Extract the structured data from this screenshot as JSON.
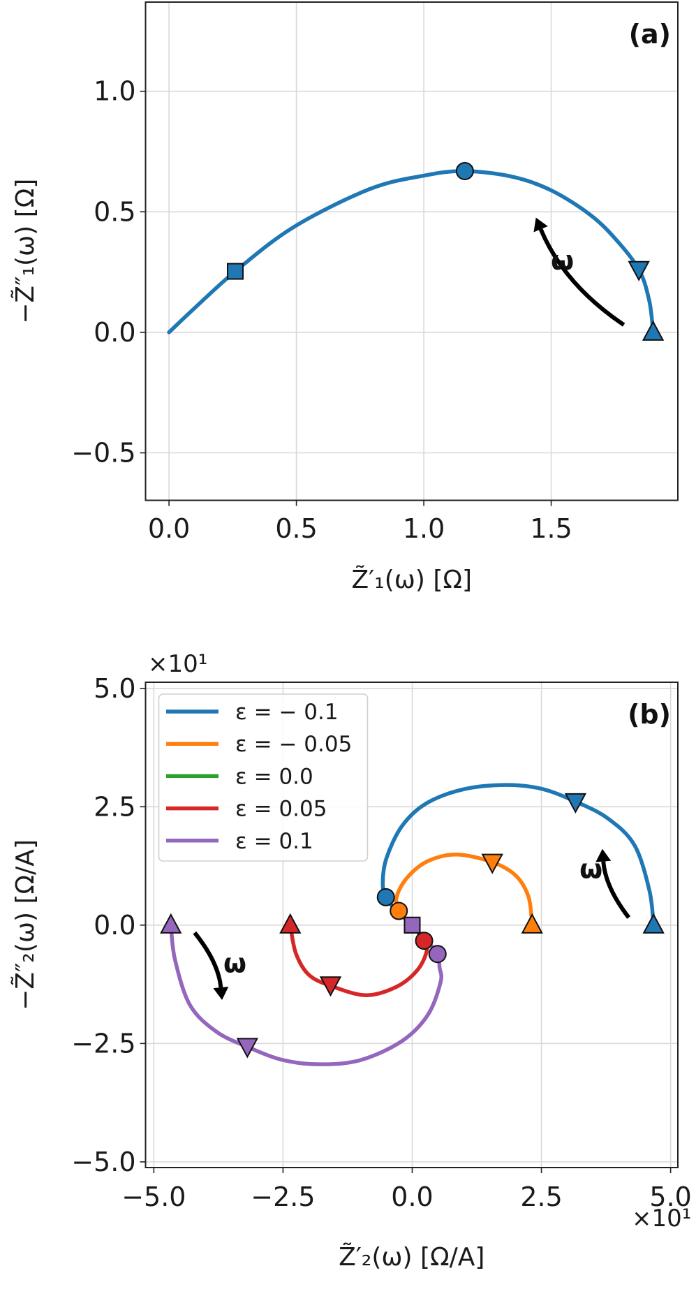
{
  "chart_data": [
    {
      "id": "a",
      "type": "line",
      "panel_label": "(a)",
      "xlabel": "Z̃′₁(ω) [Ω]",
      "ylabel": "−Z̃″₁(ω) [Ω]",
      "xlim": [
        -0.092,
        1.997
      ],
      "ylim": [
        -0.697,
        1.37
      ],
      "xticks": [
        0.0,
        0.5,
        1.0,
        1.5
      ],
      "xtick_labels": [
        "0.0",
        "0.5",
        "1.0",
        "1.5"
      ],
      "yticks": [
        -0.5,
        0.0,
        0.5,
        1.0
      ],
      "ytick_labels": [
        "−0.5",
        "0.0",
        "0.5",
        "1.0"
      ],
      "grid": true,
      "offset_text_x": "",
      "offset_text_y": "",
      "series": [
        {
          "name": "Z1",
          "color": "#1f77b4",
          "points": [
            [
              0,
              0
            ],
            [
              0.1,
              0.1
            ],
            [
              0.26,
              0.253
            ],
            [
              0.49,
              0.437
            ],
            [
              0.787,
              0.594
            ],
            [
              1.0,
              0.65
            ],
            [
              1.161,
              0.669
            ],
            [
              1.35,
              0.645
            ],
            [
              1.5,
              0.589
            ],
            [
              1.65,
              0.49
            ],
            [
              1.75,
              0.39
            ],
            [
              1.844,
              0.261
            ],
            [
              1.885,
              0.13
            ],
            [
              1.9,
              0
            ]
          ],
          "markers": [
            {
              "shape": "triangle-up",
              "x": 1.9,
              "y": 0.0
            },
            {
              "shape": "triangle-down",
              "x": 1.844,
              "y": 0.261
            },
            {
              "shape": "circle",
              "x": 1.161,
              "y": 0.669
            },
            {
              "shape": "square",
              "x": 0.26,
              "y": 0.253
            }
          ]
        }
      ],
      "annotations": [
        {
          "type": "arrow",
          "from": [
            1.785,
            0.031
          ],
          "to": [
            1.44,
            0.476
          ],
          "bend": -1
        }
      ],
      "omega_labels": [
        {
          "text": "ω",
          "x": 1.544,
          "y": 0.295
        }
      ]
    },
    {
      "id": "b",
      "type": "line",
      "panel_label": "(b)",
      "xlabel": "Z̃′₂(ω) [Ω/A]",
      "ylabel": "−Z̃″₂(ω) [Ω/A]",
      "xlim": [
        -5.16,
        5.14
      ],
      "ylim": [
        -5.12,
        5.13
      ],
      "xticks": [
        -5.0,
        -2.5,
        0.0,
        2.5,
        5.0
      ],
      "xtick_labels": [
        "−5.0",
        "−2.5",
        "0.0",
        "2.5",
        "5.0"
      ],
      "yticks": [
        -5.0,
        -2.5,
        0.0,
        2.5,
        5.0
      ],
      "ytick_labels": [
        "−5.0",
        "−2.5",
        "0.0",
        "2.5",
        "5.0"
      ],
      "grid": true,
      "offset_text_x": "×10¹",
      "offset_text_y": "×10¹",
      "legend_placement": "top-left",
      "series": [
        {
          "name": "ε = − 0.1",
          "color": "#1f77b4",
          "points": [
            [
              4.67,
              0
            ],
            [
              4.59,
              0.73
            ],
            [
              4.3,
              1.69
            ],
            [
              3.79,
              2.25
            ],
            [
              3.16,
              2.61
            ],
            [
              2.5,
              2.88
            ],
            [
              1.81,
              2.96
            ],
            [
              1.0,
              2.87
            ],
            [
              0.27,
              2.57
            ],
            [
              -0.2,
              2.09
            ],
            [
              -0.5,
              1.41
            ],
            [
              -0.57,
              0.9
            ],
            [
              -0.51,
              0.59
            ],
            [
              -0.3,
              0.3
            ],
            [
              0,
              0
            ]
          ],
          "markers": [
            {
              "shape": "triangle-up",
              "x": 4.67,
              "y": 0.0
            },
            {
              "shape": "triangle-down",
              "x": 3.16,
              "y": 2.61
            },
            {
              "shape": "circle",
              "x": -0.51,
              "y": 0.59
            }
          ]
        },
        {
          "name": "ε = − 0.05",
          "color": "#ff7f0e",
          "points": [
            [
              2.32,
              0
            ],
            [
              2.25,
              0.6
            ],
            [
              2.0,
              1.05
            ],
            [
              1.55,
              1.33
            ],
            [
              0.86,
              1.49
            ],
            [
              0.3,
              1.35
            ],
            [
              -0.1,
              1.0
            ],
            [
              -0.3,
              0.6
            ],
            [
              -0.26,
              0.3
            ],
            [
              0,
              0
            ]
          ],
          "markers": [
            {
              "shape": "triangle-up",
              "x": 2.32,
              "y": 0.0
            },
            {
              "shape": "triangle-down",
              "x": 1.55,
              "y": 1.33
            },
            {
              "shape": "circle",
              "x": -0.26,
              "y": 0.3
            }
          ]
        },
        {
          "name": "ε = 0.0",
          "color": "#2ca02c",
          "points": [
            [
              0,
              0
            ]
          ],
          "markers": [
            {
              "shape": "square",
              "x": 0.0,
              "y": 0.0
            }
          ]
        },
        {
          "name": "ε = 0.05",
          "color": "#d62728",
          "points": [
            [
              -2.36,
              0
            ],
            [
              -2.25,
              -0.6
            ],
            [
              -2.0,
              -1.05
            ],
            [
              -1.58,
              -1.28
            ],
            [
              -0.9,
              -1.48
            ],
            [
              -0.3,
              -1.3
            ],
            [
              0.1,
              -0.95
            ],
            [
              0.28,
              -0.55
            ],
            [
              0.23,
              -0.33
            ],
            [
              0,
              0
            ]
          ],
          "markers": [
            {
              "shape": "triangle-up",
              "x": -2.36,
              "y": 0.0
            },
            {
              "shape": "triangle-down",
              "x": -1.58,
              "y": -1.26
            },
            {
              "shape": "circle",
              "x": 0.23,
              "y": -0.33
            }
          ]
        },
        {
          "name": "ε = 0.1",
          "color": "#9467bd",
          "points": [
            [
              -4.67,
              0
            ],
            [
              -4.59,
              -0.73
            ],
            [
              -4.3,
              -1.69
            ],
            [
              -3.79,
              -2.25
            ],
            [
              -3.19,
              -2.57
            ],
            [
              -2.5,
              -2.85
            ],
            [
              -1.78,
              -2.94
            ],
            [
              -1.0,
              -2.85
            ],
            [
              -0.2,
              -2.45
            ],
            [
              0.3,
              -1.9
            ],
            [
              0.55,
              -1.2
            ],
            [
              0.53,
              -0.9
            ],
            [
              0.49,
              -0.61
            ],
            [
              0.3,
              -0.35
            ],
            [
              0,
              0
            ]
          ],
          "markers": [
            {
              "shape": "triangle-up",
              "x": -4.67,
              "y": 0.0
            },
            {
              "shape": "triangle-down",
              "x": -3.19,
              "y": -2.56
            },
            {
              "shape": "circle",
              "x": 0.49,
              "y": -0.61
            },
            {
              "shape": "square",
              "x": 0.0,
              "y": 0.0
            }
          ]
        }
      ],
      "annotations": [
        {
          "type": "arrow",
          "from": [
            4.19,
            0.16
          ],
          "to": [
            3.68,
            1.61
          ],
          "bend": -1
        },
        {
          "type": "arrow",
          "from": [
            -4.21,
            -0.16
          ],
          "to": [
            -3.68,
            -1.58
          ],
          "bend": -1
        }
      ],
      "omega_labels": [
        {
          "text": "ω",
          "x": 3.46,
          "y": 1.17
        },
        {
          "text": "ω",
          "x": -3.43,
          "y": -0.82
        }
      ]
    }
  ]
}
